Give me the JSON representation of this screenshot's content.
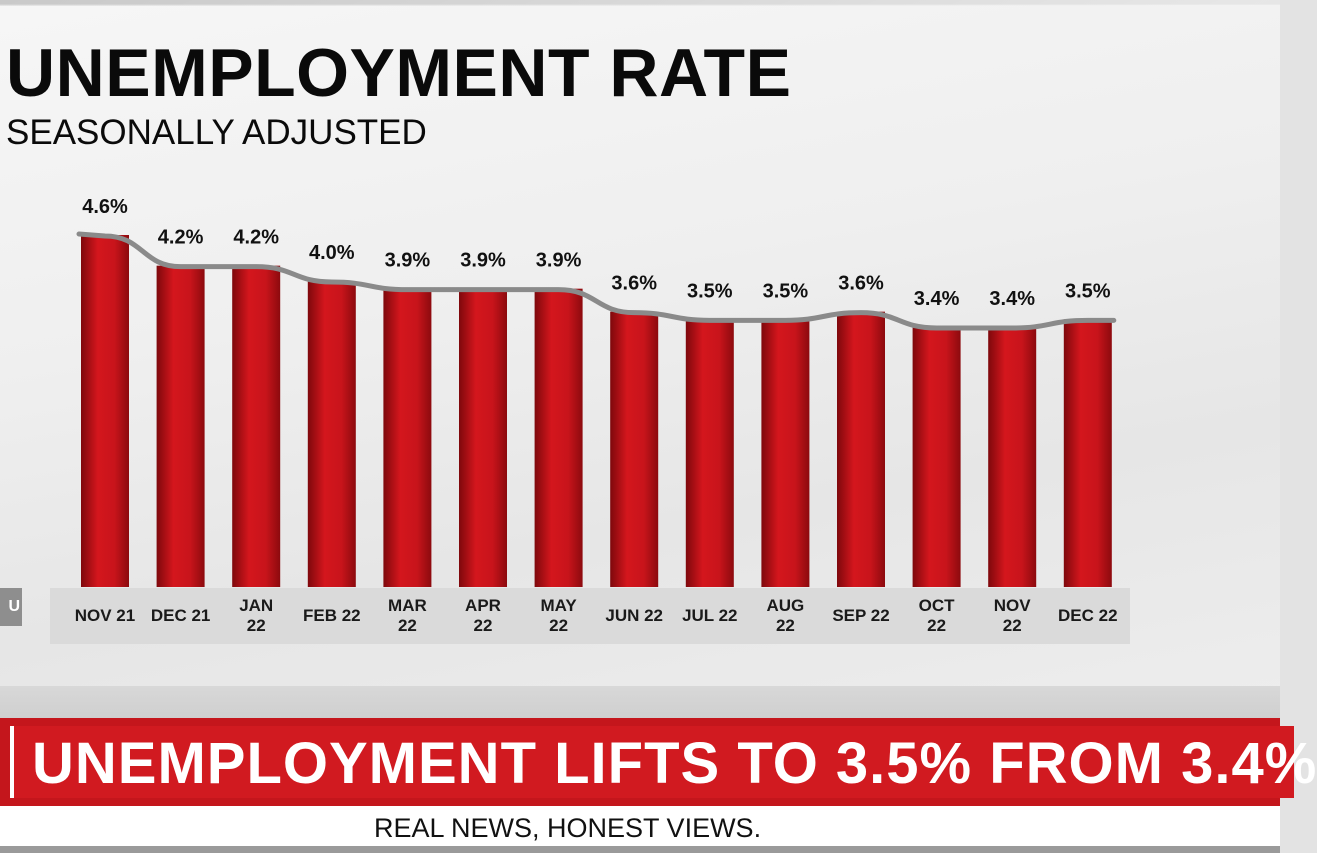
{
  "header": {
    "title": "UNEMPLOYMENT RATE",
    "subtitle": "SEASONALLY ADJUSTED"
  },
  "side_tab": {
    "text": "U"
  },
  "chart_data": {
    "type": "bar",
    "title": "UNEMPLOYMENT RATE",
    "subtitle": "SEASONALLY ADJUSTED",
    "categories": [
      [
        "NOV 21"
      ],
      [
        "DEC 21"
      ],
      [
        "JAN",
        "22"
      ],
      [
        "FEB 22"
      ],
      [
        "MAR",
        "22"
      ],
      [
        "APR",
        "22"
      ],
      [
        "MAY",
        "22"
      ],
      [
        "JUN 22"
      ],
      [
        "JUL 22"
      ],
      [
        "AUG",
        "22"
      ],
      [
        "SEP 22"
      ],
      [
        "OCT",
        "22"
      ],
      [
        "NOV",
        "22"
      ],
      [
        "DEC 22"
      ]
    ],
    "values": [
      4.6,
      4.2,
      4.2,
      4.0,
      3.9,
      3.9,
      3.9,
      3.6,
      3.5,
      3.5,
      3.6,
      3.4,
      3.4,
      3.5
    ],
    "value_labels": [
      "4.6%",
      "4.2%",
      "4.2%",
      "4.0%",
      "3.9%",
      "3.9%",
      "3.9%",
      "3.6%",
      "3.5%",
      "3.5%",
      "3.6%",
      "3.4%",
      "3.4%",
      "3.5%"
    ],
    "trend_line": true,
    "grid": false,
    "legend": "none",
    "colors": {
      "bar": "#c8141b",
      "bar_dark": "#8c0a0e",
      "trend": "#8a8a8a"
    }
  },
  "banner": {
    "headline": "UNEMPLOYMENT LIFTS TO 3.5% FROM 3.4%"
  },
  "ticker": {
    "tagline": "REAL NEWS, HONEST VIEWS."
  }
}
